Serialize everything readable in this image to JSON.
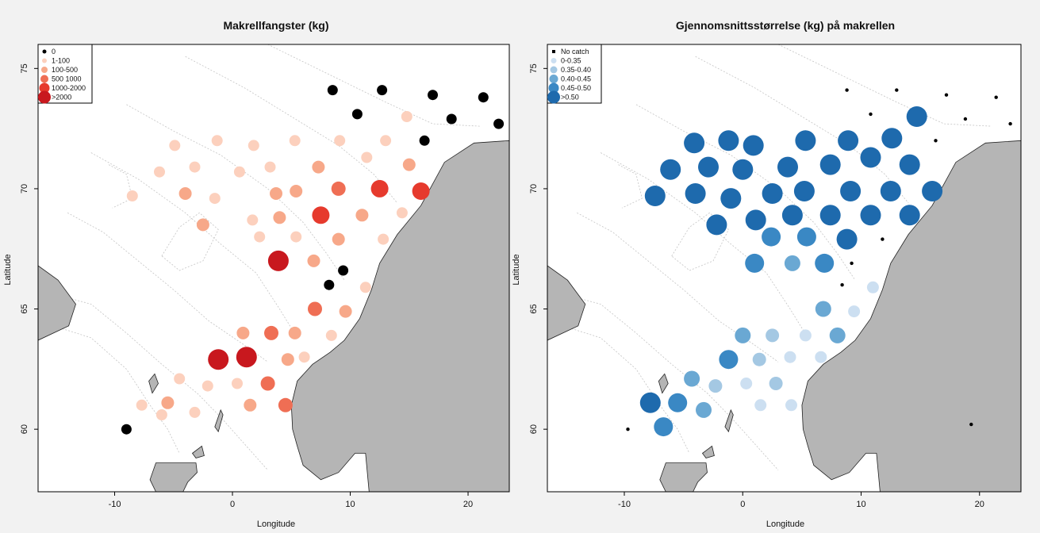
{
  "chart_data": [
    {
      "type": "scatter",
      "title": "Makrellfangster (kg)",
      "xlabel": "Longitude",
      "ylabel": "Latitude",
      "xlim": [
        -16.5,
        23.5
      ],
      "ylim": [
        57.4,
        76
      ],
      "xticks": [
        "-10",
        "0",
        "10",
        "20"
      ],
      "yticks": [
        "60",
        "65",
        "70",
        "75"
      ],
      "legend_position": "top-left",
      "legend": [
        {
          "label": "0",
          "color": "#000000",
          "size": 1
        },
        {
          "label": "1-100",
          "color": "#fcd0bd",
          "size": 2
        },
        {
          "label": "100-500",
          "color": "#f7a889",
          "size": 3
        },
        {
          "label": "500 1000",
          "color": "#ef6e54",
          "size": 4
        },
        {
          "label": "1000-2000",
          "color": "#e63a2d",
          "size": 5
        },
        {
          "label": ">2000",
          "color": "#c8181e",
          "size": 6
        }
      ],
      "points": [
        {
          "lon": -9.0,
          "lat": 60.0,
          "cls": 0
        },
        {
          "lon": 8.5,
          "lat": 74.1,
          "cls": 0
        },
        {
          "lon": 12.7,
          "lat": 74.1,
          "cls": 0
        },
        {
          "lon": 17.0,
          "lat": 73.9,
          "cls": 0
        },
        {
          "lon": 21.3,
          "lat": 73.8,
          "cls": 0
        },
        {
          "lon": 10.6,
          "lat": 73.1,
          "cls": 0
        },
        {
          "lon": 18.6,
          "lat": 72.9,
          "cls": 0
        },
        {
          "lon": 22.6,
          "lat": 72.7,
          "cls": 0
        },
        {
          "lon": 16.3,
          "lat": 72.0,
          "cls": 0
        },
        {
          "lon": 9.4,
          "lat": 66.6,
          "cls": 0
        },
        {
          "lon": 8.2,
          "lat": 66.0,
          "cls": 0
        },
        {
          "lon": -6.0,
          "lat": 60.6,
          "cls": 1
        },
        {
          "lon": -7.7,
          "lat": 61.0,
          "cls": 1
        },
        {
          "lon": -3.2,
          "lat": 60.7,
          "cls": 1
        },
        {
          "lon": -4.5,
          "lat": 62.1,
          "cls": 1
        },
        {
          "lon": -2.1,
          "lat": 61.8,
          "cls": 1
        },
        {
          "lon": 0.4,
          "lat": 61.9,
          "cls": 1
        },
        {
          "lon": 6.1,
          "lat": 63.0,
          "cls": 1
        },
        {
          "lon": 8.4,
          "lat": 63.9,
          "cls": 1
        },
        {
          "lon": 11.3,
          "lat": 65.9,
          "cls": 1
        },
        {
          "lon": 5.4,
          "lat": 68.0,
          "cls": 1
        },
        {
          "lon": 2.3,
          "lat": 68.0,
          "cls": 1
        },
        {
          "lon": 1.7,
          "lat": 68.7,
          "cls": 1
        },
        {
          "lon": -1.5,
          "lat": 69.6,
          "cls": 1
        },
        {
          "lon": 0.6,
          "lat": 70.7,
          "cls": 1
        },
        {
          "lon": 3.2,
          "lat": 70.9,
          "cls": 1
        },
        {
          "lon": -3.2,
          "lat": 70.9,
          "cls": 1
        },
        {
          "lon": -6.2,
          "lat": 70.7,
          "cls": 1
        },
        {
          "lon": -8.5,
          "lat": 69.7,
          "cls": 1
        },
        {
          "lon": -4.9,
          "lat": 71.8,
          "cls": 1
        },
        {
          "lon": -1.3,
          "lat": 72.0,
          "cls": 1
        },
        {
          "lon": 1.8,
          "lat": 71.8,
          "cls": 1
        },
        {
          "lon": 5.3,
          "lat": 72.0,
          "cls": 1
        },
        {
          "lon": 9.1,
          "lat": 72.0,
          "cls": 1
        },
        {
          "lon": 13.0,
          "lat": 72.0,
          "cls": 1
        },
        {
          "lon": 14.8,
          "lat": 73.0,
          "cls": 1
        },
        {
          "lon": 11.4,
          "lat": 71.3,
          "cls": 1
        },
        {
          "lon": 12.8,
          "lat": 67.9,
          "cls": 1
        },
        {
          "lon": 14.4,
          "lat": 69.0,
          "cls": 1
        },
        {
          "lon": -2.5,
          "lat": 68.5,
          "cls": 2
        },
        {
          "lon": -4.0,
          "lat": 69.8,
          "cls": 2
        },
        {
          "lon": 3.7,
          "lat": 69.8,
          "cls": 2
        },
        {
          "lon": 5.4,
          "lat": 69.9,
          "cls": 2
        },
        {
          "lon": 7.3,
          "lat": 70.9,
          "cls": 2
        },
        {
          "lon": 11.0,
          "lat": 68.9,
          "cls": 2
        },
        {
          "lon": 4.0,
          "lat": 68.8,
          "cls": 2
        },
        {
          "lon": 9.0,
          "lat": 67.9,
          "cls": 2
        },
        {
          "lon": 6.9,
          "lat": 67.0,
          "cls": 2
        },
        {
          "lon": 9.6,
          "lat": 64.9,
          "cls": 2
        },
        {
          "lon": 5.3,
          "lat": 64.0,
          "cls": 2
        },
        {
          "lon": 4.7,
          "lat": 62.9,
          "cls": 2
        },
        {
          "lon": 0.9,
          "lat": 64.0,
          "cls": 2
        },
        {
          "lon": -5.5,
          "lat": 61.1,
          "cls": 2
        },
        {
          "lon": 1.5,
          "lat": 61.0,
          "cls": 2
        },
        {
          "lon": 15.0,
          "lat": 71.0,
          "cls": 2
        },
        {
          "lon": 7.0,
          "lat": 65.0,
          "cls": 3
        },
        {
          "lon": 3.3,
          "lat": 64.0,
          "cls": 3
        },
        {
          "lon": 3.0,
          "lat": 61.9,
          "cls": 3
        },
        {
          "lon": 4.5,
          "lat": 61.0,
          "cls": 3
        },
        {
          "lon": 9.0,
          "lat": 70.0,
          "cls": 3
        },
        {
          "lon": 12.5,
          "lat": 70.0,
          "cls": 4
        },
        {
          "lon": 16.0,
          "lat": 69.9,
          "cls": 4
        },
        {
          "lon": 7.5,
          "lat": 68.9,
          "cls": 4
        },
        {
          "lon": -1.2,
          "lat": 62.9,
          "cls": 5
        },
        {
          "lon": 1.2,
          "lat": 63.0,
          "cls": 5
        },
        {
          "lon": 3.9,
          "lat": 67.0,
          "cls": 5
        }
      ]
    },
    {
      "type": "scatter",
      "title": "Gjennomsnittsstørrelse (kg) på makrellen",
      "xlabel": "Longitude",
      "ylabel": "Latitude",
      "xlim": [
        -16.5,
        23.5
      ],
      "ylim": [
        57.4,
        76
      ],
      "xticks": [
        "-10",
        "0",
        "10",
        "20"
      ],
      "yticks": [
        "60",
        "65",
        "70",
        "75"
      ],
      "legend_position": "top-left",
      "legend": [
        {
          "label": "No catch",
          "color": "#000000",
          "size": 0
        },
        {
          "label": "0-0.35",
          "color": "#ccdff1",
          "size": 2
        },
        {
          "label": "0.35-0.40",
          "color": "#a4c8e3",
          "size": 3
        },
        {
          "label": "0.40-0.45",
          "color": "#6aa8d3",
          "size": 4
        },
        {
          "label": "0.45-0.50",
          "color": "#3a88c4",
          "size": 5
        },
        {
          "label": ">0.50",
          "color": "#1e6aad",
          "size": 6
        }
      ],
      "points": [
        {
          "lon": -9.7,
          "lat": 60.0,
          "cls": 0
        },
        {
          "lon": 8.8,
          "lat": 74.1,
          "cls": 0
        },
        {
          "lon": 13.0,
          "lat": 74.1,
          "cls": 0
        },
        {
          "lon": 17.2,
          "lat": 73.9,
          "cls": 0
        },
        {
          "lon": 21.4,
          "lat": 73.8,
          "cls": 0
        },
        {
          "lon": 10.8,
          "lat": 73.1,
          "cls": 0
        },
        {
          "lon": 18.8,
          "lat": 72.9,
          "cls": 0
        },
        {
          "lon": 22.6,
          "lat": 72.7,
          "cls": 0
        },
        {
          "lon": 16.3,
          "lat": 72.0,
          "cls": 0
        },
        {
          "lon": 11.8,
          "lat": 67.9,
          "cls": 0
        },
        {
          "lon": 9.2,
          "lat": 66.9,
          "cls": 0
        },
        {
          "lon": 8.4,
          "lat": 66.0,
          "cls": 0
        },
        {
          "lon": 19.3,
          "lat": 60.2,
          "cls": 0
        },
        {
          "lon": 11.0,
          "lat": 65.9,
          "cls": 1
        },
        {
          "lon": 9.4,
          "lat": 64.9,
          "cls": 1
        },
        {
          "lon": 5.3,
          "lat": 63.9,
          "cls": 1
        },
        {
          "lon": 4.0,
          "lat": 63.0,
          "cls": 1
        },
        {
          "lon": 0.3,
          "lat": 61.9,
          "cls": 1
        },
        {
          "lon": 1.5,
          "lat": 61.0,
          "cls": 1
        },
        {
          "lon": 4.1,
          "lat": 61.0,
          "cls": 1
        },
        {
          "lon": 6.6,
          "lat": 63.0,
          "cls": 1
        },
        {
          "lon": 2.5,
          "lat": 63.9,
          "cls": 2
        },
        {
          "lon": 1.4,
          "lat": 62.9,
          "cls": 2
        },
        {
          "lon": 2.8,
          "lat": 61.9,
          "cls": 2
        },
        {
          "lon": -2.3,
          "lat": 61.8,
          "cls": 2
        },
        {
          "lon": -3.3,
          "lat": 60.8,
          "cls": 3
        },
        {
          "lon": -4.3,
          "lat": 62.1,
          "cls": 3
        },
        {
          "lon": 0.0,
          "lat": 63.9,
          "cls": 3
        },
        {
          "lon": 4.2,
          "lat": 66.9,
          "cls": 3
        },
        {
          "lon": 6.8,
          "lat": 65.0,
          "cls": 3
        },
        {
          "lon": 8.0,
          "lat": 63.9,
          "cls": 3
        },
        {
          "lon": 1.0,
          "lat": 66.9,
          "cls": 4
        },
        {
          "lon": 6.9,
          "lat": 66.9,
          "cls": 4
        },
        {
          "lon": 2.4,
          "lat": 68.0,
          "cls": 4
        },
        {
          "lon": 5.4,
          "lat": 68.0,
          "cls": 4
        },
        {
          "lon": -1.2,
          "lat": 62.9,
          "cls": 4
        },
        {
          "lon": -5.5,
          "lat": 61.1,
          "cls": 4
        },
        {
          "lon": -6.7,
          "lat": 60.1,
          "cls": 4
        },
        {
          "lon": -7.8,
          "lat": 61.1,
          "cls": 5
        },
        {
          "lon": -7.4,
          "lat": 69.7,
          "cls": 6
        },
        {
          "lon": -6.1,
          "lat": 70.8,
          "cls": 6
        },
        {
          "lon": -4.1,
          "lat": 71.9,
          "cls": 6
        },
        {
          "lon": -4.0,
          "lat": 69.8,
          "cls": 6
        },
        {
          "lon": -2.9,
          "lat": 70.9,
          "cls": 6
        },
        {
          "lon": -1.2,
          "lat": 72.0,
          "cls": 6
        },
        {
          "lon": -1.0,
          "lat": 69.6,
          "cls": 6
        },
        {
          "lon": 0.0,
          "lat": 70.8,
          "cls": 6
        },
        {
          "lon": 0.9,
          "lat": 71.8,
          "cls": 6
        },
        {
          "lon": 1.1,
          "lat": 68.7,
          "cls": 6
        },
        {
          "lon": -2.2,
          "lat": 68.5,
          "cls": 6
        },
        {
          "lon": 2.5,
          "lat": 69.8,
          "cls": 6
        },
        {
          "lon": 3.8,
          "lat": 70.9,
          "cls": 6
        },
        {
          "lon": 4.2,
          "lat": 68.9,
          "cls": 6
        },
        {
          "lon": 5.2,
          "lat": 69.9,
          "cls": 6
        },
        {
          "lon": 5.3,
          "lat": 72.0,
          "cls": 6
        },
        {
          "lon": 7.4,
          "lat": 71.0,
          "cls": 6
        },
        {
          "lon": 7.4,
          "lat": 68.9,
          "cls": 6
        },
        {
          "lon": 8.9,
          "lat": 72.0,
          "cls": 6
        },
        {
          "lon": 9.1,
          "lat": 69.9,
          "cls": 6
        },
        {
          "lon": 8.8,
          "lat": 67.9,
          "cls": 6
        },
        {
          "lon": 10.8,
          "lat": 71.3,
          "cls": 6
        },
        {
          "lon": 10.8,
          "lat": 68.9,
          "cls": 6
        },
        {
          "lon": 12.6,
          "lat": 72.1,
          "cls": 6
        },
        {
          "lon": 12.5,
          "lat": 69.9,
          "cls": 6
        },
        {
          "lon": 14.1,
          "lat": 71.0,
          "cls": 6
        },
        {
          "lon": 14.1,
          "lat": 68.9,
          "cls": 6
        },
        {
          "lon": 14.7,
          "lat": 73.0,
          "cls": 6
        },
        {
          "lon": 16.0,
          "lat": 69.9,
          "cls": 6
        }
      ]
    }
  ]
}
